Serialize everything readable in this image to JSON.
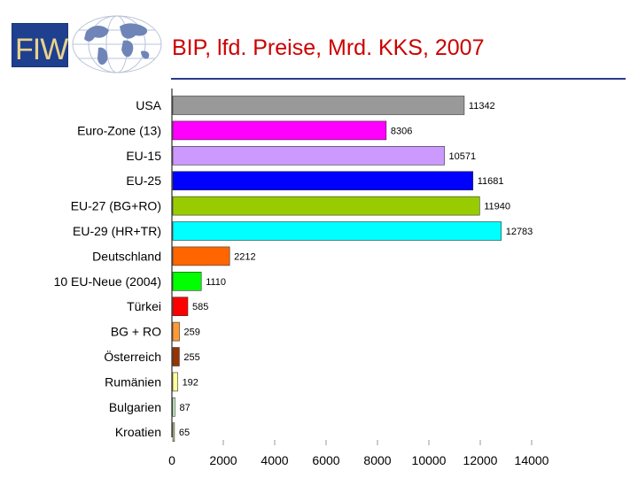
{
  "header": {
    "logo_text": "FIW",
    "title": "BIP, lfd. Preise, Mrd. KKS, 2007"
  },
  "chart_data": {
    "type": "bar",
    "orientation": "horizontal",
    "categories": [
      "USA",
      "Euro-Zone (13)",
      "EU-15",
      "EU-25",
      "EU-27 (BG+RO)",
      "EU-29 (HR+TR)",
      "Deutschland",
      "10 EU-Neue (2004)",
      "Türkei",
      "BG + RO",
      "Österreich",
      "Rumänien",
      "Bulgarien",
      "Kroatien"
    ],
    "values": [
      11342,
      8306,
      10571,
      11681,
      11940,
      12783,
      2212,
      1110,
      585,
      259,
      255,
      192,
      87,
      65
    ],
    "data_labels": [
      "11342",
      "8306",
      "10571",
      "11681",
      "11940",
      "12783",
      "2212",
      "1110",
      "585",
      "259",
      "255",
      "192",
      "87",
      "65"
    ],
    "colors": [
      "#999999",
      "#ff00ff",
      "#cc99ff",
      "#0000ff",
      "#99cc00",
      "#00ffff",
      "#ff6600",
      "#00ff00",
      "#ff0000",
      "#ff9933",
      "#993300",
      "#ffff99",
      "#ccffcc",
      "#cccc99"
    ],
    "x_ticks": [
      "0",
      "2000",
      "4000",
      "6000",
      "8000",
      "10000",
      "12000",
      "14000"
    ],
    "xlim": [
      0,
      14000
    ],
    "title": "",
    "xlabel": "",
    "ylabel": "",
    "grid": false,
    "legend": "none"
  }
}
